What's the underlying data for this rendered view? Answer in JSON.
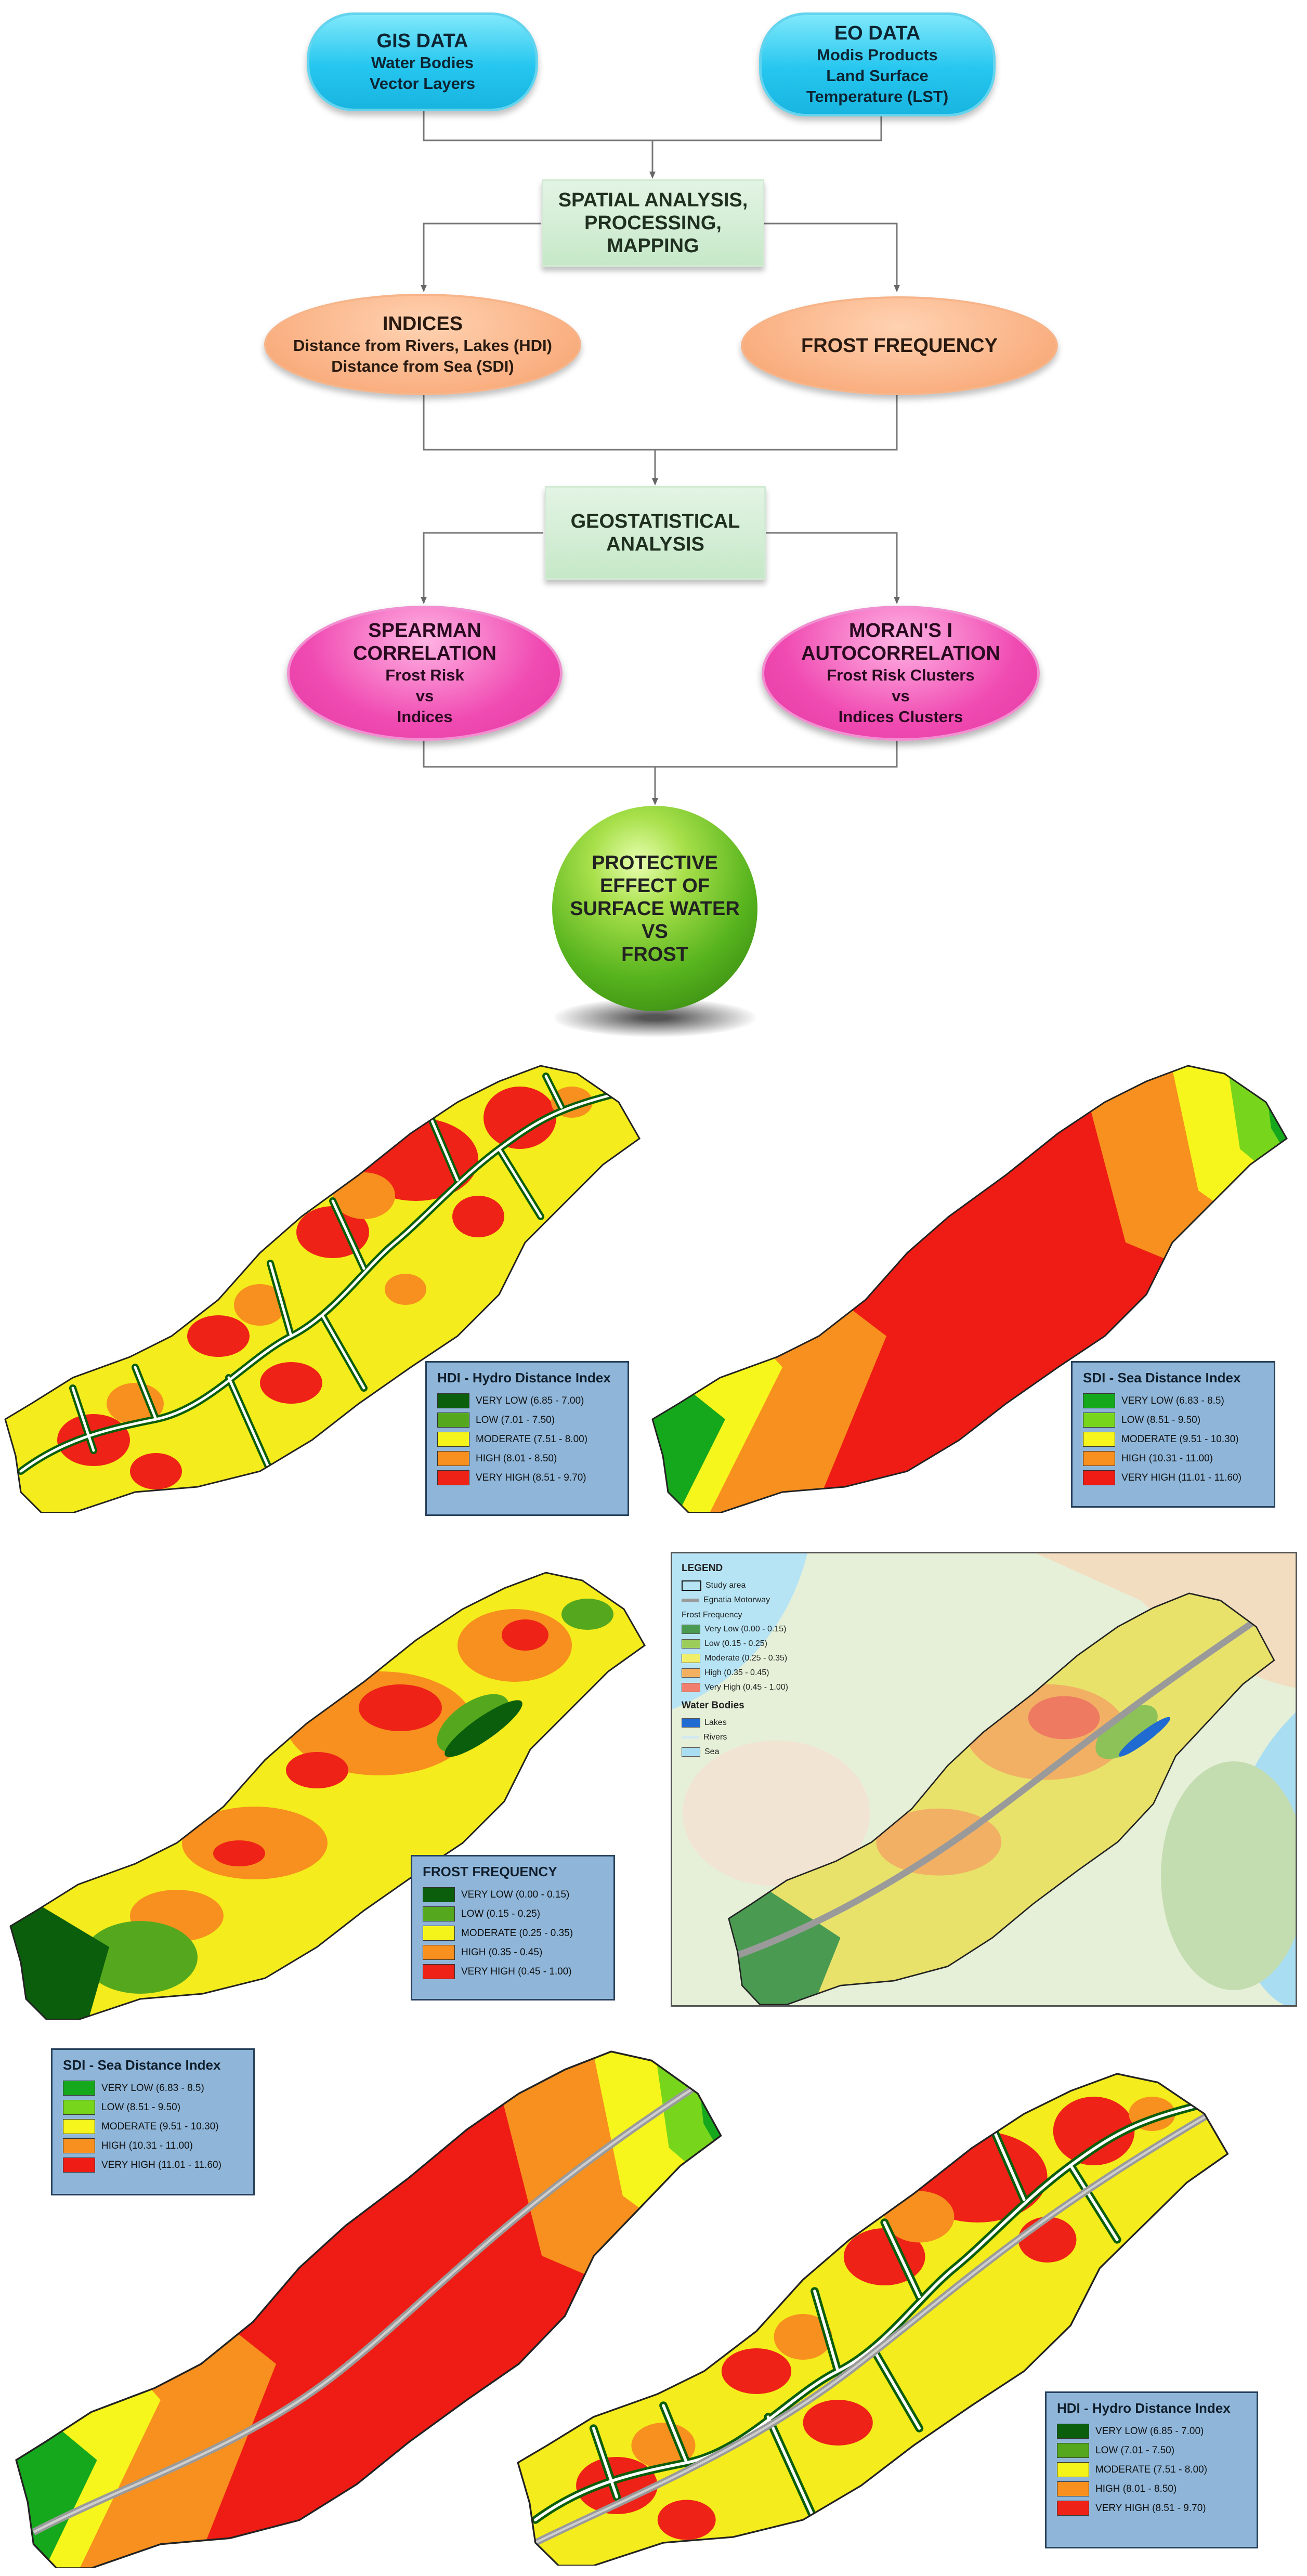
{
  "flow": {
    "gis": {
      "title": "GIS DATA",
      "l1": "Water Bodies",
      "l2": "Vector Layers"
    },
    "eo": {
      "title": "EO DATA",
      "l1": "Modis Products",
      "l2": "Land Surface",
      "l3": "Temperature (LST)"
    },
    "spatial": {
      "l1": "SPATIAL ANALYSIS,",
      "l2": "PROCESSING,",
      "l3": "MAPPING"
    },
    "indices": {
      "title": "INDICES",
      "l1": "Distance from Rivers, Lakes (HDI)",
      "l2": "Distance from Sea (SDI)"
    },
    "frost": {
      "title": "FROST FREQUENCY"
    },
    "geo": {
      "l1": "GEOSTATISTICAL",
      "l2": "ANALYSIS"
    },
    "spearman": {
      "l1": "SPEARMAN",
      "l2": "CORRELATION",
      "l3": "Frost Risk",
      "l4": "vs",
      "l5": "Indices"
    },
    "moran": {
      "l1": "MORAN'S I",
      "l2": "AUTOCORRELATION",
      "l3": "Frost Risk Clusters",
      "l4": "vs",
      "l5": "Indices Clusters"
    },
    "result": {
      "l1": "PROTECTIVE",
      "l2": "EFFECT OF",
      "l3": "SURFACE WATER",
      "l4": "VS",
      "l5": "FROST"
    }
  },
  "legends": {
    "hdi": {
      "title": "HDI - Hydro Distance Index",
      "items": [
        {
          "label": "VERY LOW (6.85 - 7.00)",
          "color": "#0b5e0b"
        },
        {
          "label": "LOW (7.01 - 7.50)",
          "color": "#55a81e"
        },
        {
          "label": "MODERATE (7.51 - 8.00)",
          "color": "#f4f41a"
        },
        {
          "label": "HIGH (8.01 - 8.50)",
          "color": "#f7901e"
        },
        {
          "label": "VERY HIGH (8.51 - 9.70)",
          "color": "#ee2216"
        }
      ]
    },
    "sdi": {
      "title": "SDI - Sea Distance Index",
      "items": [
        {
          "label": "VERY LOW (6.83 - 8.5)",
          "color": "#16a81c"
        },
        {
          "label": "LOW (8.51 - 9.50)",
          "color": "#77d61c"
        },
        {
          "label": "MODERATE (9.51 - 10.30)",
          "color": "#f6f61c"
        },
        {
          "label": "HIGH (10.31 - 11.00)",
          "color": "#f7901e"
        },
        {
          "label": "VERY HIGH (11.01 - 11.60)",
          "color": "#ee1c14"
        }
      ]
    },
    "frost": {
      "title": "FROST FREQUENCY",
      "items": [
        {
          "label": "VERY LOW (0.00 - 0.15)",
          "color": "#0b5e0b"
        },
        {
          "label": "LOW (0.15 - 0.25)",
          "color": "#55a81e"
        },
        {
          "label": "MODERATE (0.25 - 0.35)",
          "color": "#f4f41a"
        },
        {
          "label": "HIGH (0.35 - 0.45)",
          "color": "#f7901e"
        },
        {
          "label": "VERY HIGH (0.45 - 1.00)",
          "color": "#ee2216"
        }
      ]
    },
    "overview": {
      "title": "LEGEND",
      "study_area": "Study area",
      "motorway": "Egnatia Motorway",
      "frost_heading": "Frost Frequency",
      "frost_items": [
        {
          "label": "Very Low (0.00 - 0.15)",
          "color": "#4a9a52"
        },
        {
          "label": "Low (0.15 - 0.25)",
          "color": "#9ccc5a"
        },
        {
          "label": "Moderate (0.25 - 0.35)",
          "color": "#f1ef6a"
        },
        {
          "label": "High (0.35 - 0.45)",
          "color": "#f3b060"
        },
        {
          "label": "Very High (0.45 - 1.00)",
          "color": "#f27e6e"
        }
      ],
      "water_heading": "Water Bodies",
      "lakes": "Lakes",
      "rivers": "Rivers",
      "sea": "Sea"
    }
  }
}
